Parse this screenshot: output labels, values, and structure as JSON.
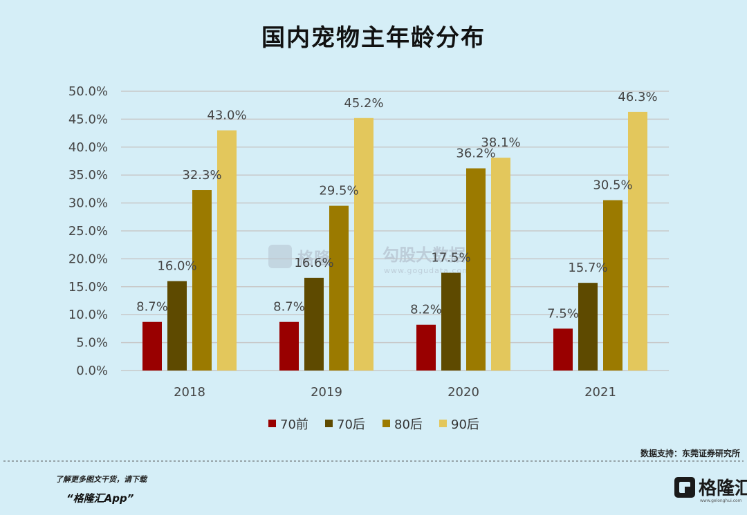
{
  "chart_data": {
    "type": "bar",
    "title": "国内宠物主年龄分布",
    "categories": [
      "2018",
      "2019",
      "2020",
      "2021"
    ],
    "series": [
      {
        "name": "70前",
        "color": "#990000",
        "values": [
          8.7,
          8.7,
          8.2,
          7.5
        ]
      },
      {
        "name": "70后",
        "color": "#5e4a00",
        "values": [
          16.0,
          16.6,
          17.5,
          15.7
        ]
      },
      {
        "name": "80后",
        "color": "#9b7a00",
        "values": [
          32.3,
          29.5,
          36.2,
          30.5
        ]
      },
      {
        "name": "90后",
        "color": "#e3c75c",
        "values": [
          43.0,
          45.2,
          38.1,
          46.3
        ]
      }
    ],
    "value_labels": [
      [
        "8.7%",
        "16.0%",
        "32.3%",
        "43.0%"
      ],
      [
        "8.7%",
        "16.6%",
        "29.5%",
        "45.2%"
      ],
      [
        "8.2%",
        "17.5%",
        "36.2%",
        "38.1%"
      ],
      [
        "7.5%",
        "15.7%",
        "30.5%",
        "46.3%"
      ]
    ],
    "yticks": [
      "0.0%",
      "5.0%",
      "10.0%",
      "15.0%",
      "20.0%",
      "25.0%",
      "30.0%",
      "35.0%",
      "40.0%",
      "45.0%",
      "50.0%"
    ],
    "ylim": [
      0,
      50
    ],
    "grid": true,
    "legend_position": "bottom"
  },
  "source_text": "数据支持：东莞证券研究所",
  "footer": {
    "note": "了解更多图文干货，请下载",
    "app_name": "“格隆汇App”"
  },
  "brand": {
    "name": "格隆汇",
    "sub": "www.gelonghui.com"
  },
  "watermark": {
    "left_text": "格隆汇",
    "right_text": "勾股大数据",
    "right_sub": "www.gogudata.com"
  },
  "colors": {
    "background": "#d5eef7",
    "grid": "#c8c8c8"
  }
}
